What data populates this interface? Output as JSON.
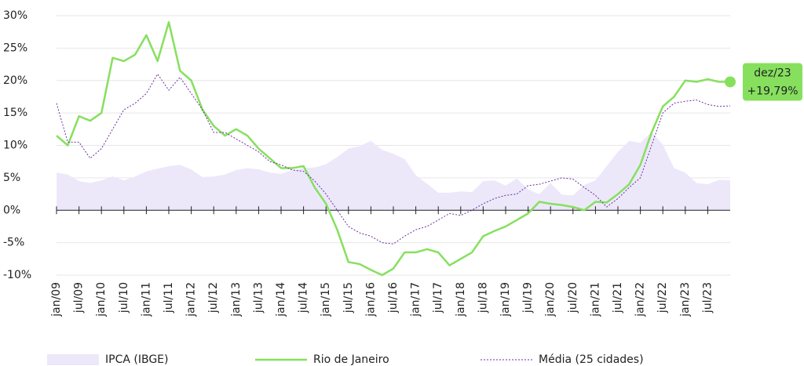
{
  "chart_data": {
    "type": "line",
    "categories": [
      "jan/09",
      null,
      "jul/09",
      null,
      "jan/10",
      null,
      "jul/10",
      null,
      "jan/11",
      null,
      "jul/11",
      null,
      "jan/12",
      null,
      "jul/12",
      null,
      "jan/13",
      null,
      "jul/13",
      null,
      "jan/14",
      null,
      "jul/14",
      null,
      "jan/15",
      null,
      "jul/15",
      null,
      "jan/16",
      null,
      "jul/16",
      null,
      "jan/17",
      null,
      "jul/17",
      null,
      "jan/18",
      null,
      "jul/18",
      null,
      "jan/19",
      null,
      "jul/19",
      null,
      "jan/20",
      null,
      "jul/20",
      null,
      "jan/21",
      null,
      "jul/21",
      null,
      "jan/22",
      null,
      "jul/22",
      null,
      "jan/23",
      null,
      "jul/23",
      null,
      null
    ],
    "series": [
      {
        "name": "IPCA (IBGE)",
        "kind": "area",
        "color": "#ece8fa",
        "values": [
          5.8,
          5.5,
          4.5,
          4.2,
          4.6,
          5.2,
          4.6,
          5.2,
          6,
          6.4,
          6.8,
          7,
          6.3,
          5.1,
          5.2,
          5.5,
          6.2,
          6.5,
          6.3,
          5.8,
          5.6,
          6.2,
          6.5,
          6.6,
          7.1,
          8.2,
          9.5,
          9.9,
          10.7,
          9.3,
          8.7,
          7.9,
          5.4,
          4.1,
          2.7,
          2.7,
          2.9,
          2.8,
          4.5,
          4.6,
          3.8,
          4.9,
          3.2,
          2.5,
          4.2,
          2.4,
          2.3,
          3.9,
          4.6,
          6.8,
          9,
          10.7,
          10.4,
          12.1,
          10.1,
          6.5,
          5.8,
          4.2,
          4,
          4.7,
          4.6
        ]
      },
      {
        "name": "Rio de Janeiro",
        "kind": "line",
        "color": "#86e05e",
        "values": [
          11.5,
          10,
          14.5,
          13.8,
          15,
          23.5,
          23,
          24,
          27,
          23,
          29,
          21.5,
          20,
          15.5,
          13,
          11.5,
          12.5,
          11.5,
          9.5,
          8,
          6.5,
          6.5,
          6.8,
          3.5,
          1,
          -3,
          -8,
          -8.3,
          -9.2,
          -10,
          -9,
          -6.5,
          -6.5,
          -6,
          -6.5,
          -8.5,
          -7.5,
          -6.5,
          -4,
          -3.2,
          -2.5,
          -1.5,
          -0.5,
          1.3,
          1,
          0.8,
          0.5,
          0,
          1.3,
          1.2,
          2.5,
          4,
          7,
          12,
          16,
          17.5,
          20,
          19.8,
          20.2,
          19.8,
          19.79
        ]
      },
      {
        "name": "Média (25 cidades)",
        "kind": "dotted",
        "color": "#6a2fa0",
        "values": [
          16.5,
          10.5,
          10.5,
          8,
          9.5,
          12.5,
          15.5,
          16.5,
          18,
          21,
          18.5,
          20.5,
          18,
          15.5,
          12,
          12,
          11,
          10,
          9,
          7.5,
          7,
          6.2,
          6,
          4.5,
          2.5,
          0,
          -2.5,
          -3.5,
          -4,
          -5,
          -5.2,
          -4,
          -3,
          -2.5,
          -1.5,
          -0.5,
          -0.8,
          0,
          1,
          1.8,
          2.3,
          2.5,
          3.8,
          4,
          4.5,
          5,
          4.8,
          3.5,
          2.3,
          0.5,
          1.8,
          3.5,
          5,
          10,
          15,
          16.5,
          16.8,
          17,
          16.3,
          16,
          16.1
        ]
      }
    ],
    "ylim": [
      -10,
      30
    ],
    "yticks": [
      {
        "value": -10,
        "label": "-10%"
      },
      {
        "value": -5,
        "label": "-5%"
      },
      {
        "value": 0,
        "label": "0%"
      },
      {
        "value": 5,
        "label": "5%"
      },
      {
        "value": 10,
        "label": "10%"
      },
      {
        "value": 15,
        "label": "15%"
      },
      {
        "value": 20,
        "label": "20%"
      },
      {
        "value": 25,
        "label": "25%"
      },
      {
        "value": 30,
        "label": "30%"
      }
    ],
    "grid": true,
    "annotation": {
      "label": "dez/23",
      "text": "+19,79%",
      "value": 19.79,
      "color": "#86e05e"
    }
  }
}
